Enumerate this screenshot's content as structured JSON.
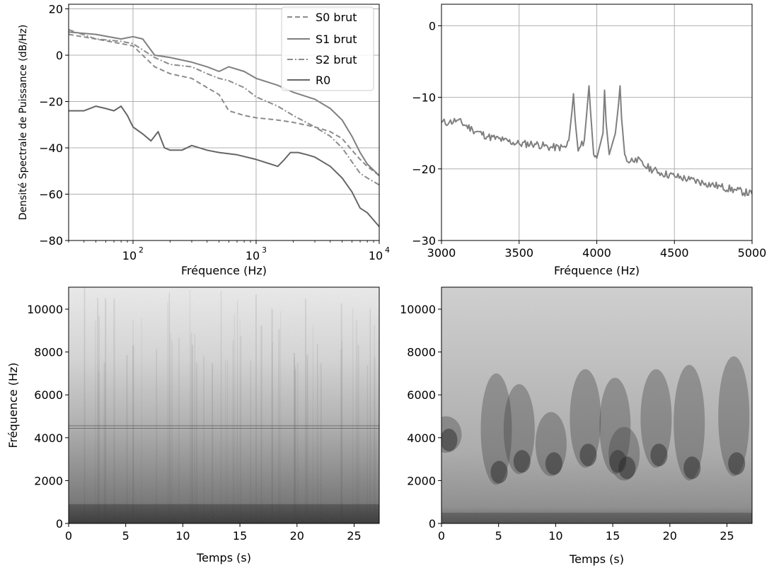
{
  "chart_data": [
    {
      "id": "psd",
      "type": "line",
      "xscale": "log",
      "xlim": [
        30,
        10000
      ],
      "ylim": [
        -80,
        22
      ],
      "xlabel": "Fréquence (Hz)",
      "ylabel": "Densité Spectrale de Puissance (dB/Hz)",
      "xticks": [
        {
          "value": 100,
          "base": "10",
          "exp": "2"
        },
        {
          "value": 1000,
          "base": "10",
          "exp": "3"
        },
        {
          "value": 10000,
          "base": "10",
          "exp": "4"
        }
      ],
      "yticks": [
        20,
        0,
        -20,
        -40,
        -60,
        -80
      ],
      "grid": true,
      "legend_position": "top-right",
      "series": [
        {
          "name": "S0 brut",
          "style": "dashed",
          "color": "#8c8c8c",
          "x": [
            30,
            50,
            80,
            100,
            150,
            200,
            300,
            400,
            500,
            600,
            800,
            1000,
            1500,
            2000,
            3000,
            4000,
            5000,
            6000,
            7000,
            8000,
            10000
          ],
          "y": [
            9,
            7,
            5,
            4,
            -5,
            -8,
            -10,
            -14,
            -17,
            -24,
            -26,
            -27,
            -28,
            -29,
            -31,
            -33,
            -36,
            -41,
            -45,
            -48,
            -52
          ]
        },
        {
          "name": "S1 brut",
          "style": "solid",
          "color": "#7f7f7f",
          "x": [
            30,
            50,
            80,
            100,
            120,
            150,
            200,
            300,
            400,
            500,
            600,
            800,
            1000,
            1500,
            2000,
            3000,
            4000,
            5000,
            6000,
            7000,
            8000,
            10000
          ],
          "y": [
            10,
            9,
            7,
            8,
            7,
            0,
            -1,
            -3,
            -5,
            -7,
            -5,
            -7,
            -10,
            -13,
            -16,
            -19,
            -23,
            -28,
            -35,
            -42,
            -47,
            -52
          ]
        },
        {
          "name": "S2 brut",
          "style": "dashdot",
          "color": "#8c8c8c",
          "x": [
            30,
            50,
            80,
            100,
            150,
            200,
            300,
            400,
            500,
            600,
            800,
            1000,
            1500,
            2000,
            3000,
            4000,
            5000,
            6000,
            7000,
            8000,
            10000
          ],
          "y": [
            11,
            7,
            6,
            5,
            -1,
            -4,
            -5,
            -8,
            -10,
            -11,
            -14,
            -18,
            -22,
            -26,
            -31,
            -35,
            -40,
            -46,
            -51,
            -53,
            -56
          ]
        },
        {
          "name": "R0",
          "style": "solid",
          "color": "#666666",
          "x": [
            30,
            40,
            50,
            60,
            70,
            80,
            90,
            100,
            120,
            140,
            160,
            180,
            200,
            250,
            300,
            400,
            500,
            700,
            1000,
            1500,
            1700,
            1900,
            2200,
            2600,
            3000,
            4000,
            5000,
            6000,
            7000,
            8000,
            10000
          ],
          "y": [
            -24,
            -24,
            -22,
            -23,
            -24,
            -22,
            -26,
            -31,
            -34,
            -37,
            -33,
            -40,
            -41,
            -41,
            -39,
            -41,
            -42,
            -43,
            -45,
            -48,
            -45,
            -42,
            -42,
            -43,
            -44,
            -48,
            -53,
            -59,
            -66,
            -68,
            -74
          ]
        }
      ]
    },
    {
      "id": "zoom",
      "type": "line",
      "xlim": [
        3000,
        5000
      ],
      "ylim": [
        -30,
        3
      ],
      "xlabel": "Fréquence (Hz)",
      "xticks": [
        3000,
        3500,
        4000,
        4500,
        5000
      ],
      "yticks": [
        0,
        -10,
        -20,
        -30
      ],
      "grid": true,
      "series": [
        {
          "color": "#7f7f7f",
          "x": [
            3000,
            3050,
            3100,
            3200,
            3300,
            3400,
            3500,
            3600,
            3700,
            3800,
            3820,
            3840,
            3850,
            3860,
            3880,
            3920,
            3940,
            3950,
            3960,
            3980,
            4000,
            4040,
            4050,
            4060,
            4080,
            4120,
            4140,
            4150,
            4160,
            4180,
            4200,
            4250,
            4300,
            4400,
            4500,
            4600,
            4700,
            4800,
            4900,
            5000
          ],
          "y": [
            -13.5,
            -13.5,
            -13.2,
            -14.5,
            -15.5,
            -16.0,
            -16.5,
            -16.5,
            -17.0,
            -17.0,
            -16.0,
            -12.0,
            -9.5,
            -13.0,
            -17.5,
            -16.0,
            -11.0,
            -8.4,
            -12.0,
            -18.0,
            -18.5,
            -15.0,
            -9.0,
            -13.5,
            -18.0,
            -15.0,
            -11.0,
            -8.4,
            -13.0,
            -18.0,
            -19.0,
            -18.5,
            -19.5,
            -20.5,
            -21.0,
            -21.5,
            -22.0,
            -22.5,
            -23.0,
            -23.5
          ]
        }
      ]
    },
    {
      "id": "spec-left",
      "type": "heatmap",
      "xlim": [
        0,
        27.2
      ],
      "ylim": [
        0,
        11025
      ],
      "xlabel": "Temps (s)",
      "ylabel": "Fréquence (Hz)",
      "xticks": [
        0,
        5,
        10,
        15,
        20,
        25
      ],
      "yticks": [
        0,
        2000,
        4000,
        6000,
        8000,
        10000
      ],
      "colormap": "greys"
    },
    {
      "id": "spec-right",
      "type": "heatmap",
      "xlim": [
        0,
        27.2
      ],
      "ylim": [
        0,
        11025
      ],
      "xlabel": "Temps (s)",
      "xticks": [
        0,
        5,
        10,
        15,
        20,
        25
      ],
      "yticks": [
        0,
        2000,
        4000,
        6000,
        8000,
        10000
      ],
      "colormap": "greys"
    }
  ]
}
